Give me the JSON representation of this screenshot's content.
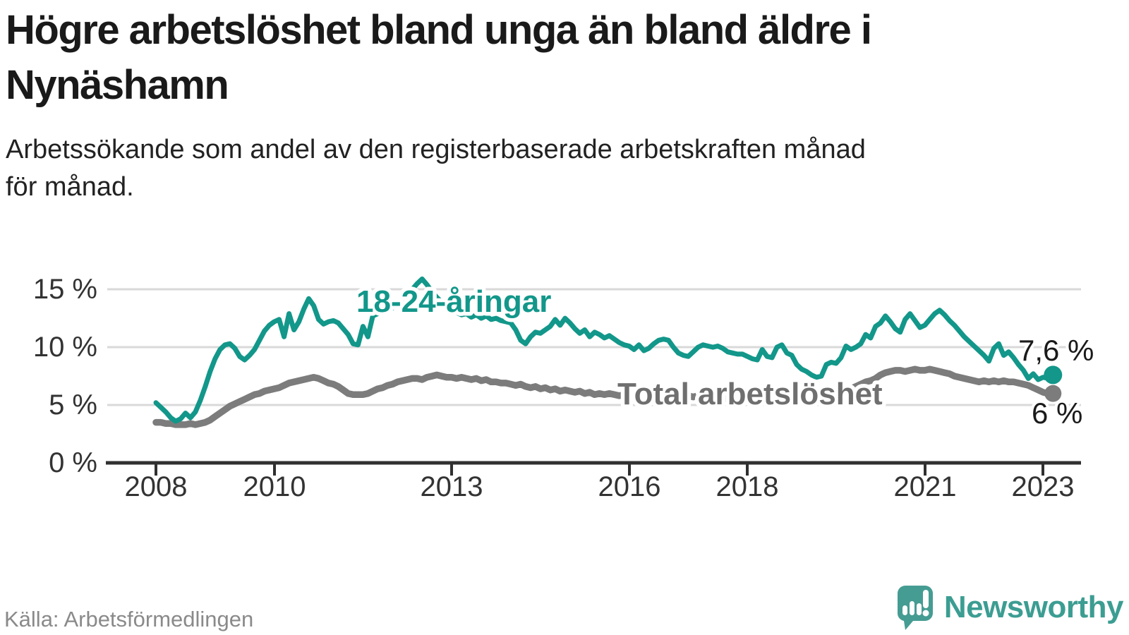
{
  "header": {
    "title": "Högre arbetslöshet bland unga än bland äldre i\nNynäshamn",
    "subtitle": "Arbetssökande som andel av den registerbaserade arbetskraften månad\nför månad."
  },
  "footer": {
    "source": "Källa: Arbetsförmedlingen",
    "brand": "Newsworthy",
    "logo_icon": "speech-bubble-bar-chart-icon"
  },
  "colors": {
    "youth_line": "#12978A",
    "total_line": "#7C7C7C",
    "total_label": "#6F6F6F",
    "axis": "#303030",
    "grid": "#D9D9D9",
    "end_label_text": "#1A1A1A",
    "brand_teal": "#3C9D92",
    "source_text": "#8A8A8A"
  },
  "chart_data": {
    "type": "line",
    "frequency": "monthly",
    "x_start": "2008-01",
    "x_end": "2023-03",
    "x_tick_labels": [
      "2008",
      "2010",
      "2013",
      "2016",
      "2018",
      "2021",
      "2023"
    ],
    "y_tick_labels": [
      "0 %",
      "5 %",
      "10 %",
      "15 %"
    ],
    "y_ticks": [
      0,
      5,
      10,
      15
    ],
    "ylim": [
      0,
      16.5
    ],
    "grid": "horizontal",
    "legend": "inline-labels",
    "series": [
      {
        "name": "18-24-åringar",
        "color": "#12978A",
        "label_color": "#12978A",
        "end_label": "7,6 %",
        "end_value": 7.6,
        "values": [
          5.2,
          4.8,
          4.4,
          3.9,
          3.6,
          3.8,
          4.3,
          3.9,
          4.4,
          5.4,
          6.6,
          7.9,
          9.0,
          9.8,
          10.2,
          10.3,
          9.9,
          9.2,
          8.9,
          9.3,
          9.8,
          10.6,
          11.4,
          11.9,
          12.2,
          12.4,
          10.9,
          12.9,
          11.5,
          12.2,
          13.3,
          14.2,
          13.6,
          12.4,
          12.0,
          12.2,
          12.3,
          12.1,
          11.6,
          11.1,
          10.3,
          10.2,
          11.8,
          10.9,
          12.7,
          12.9,
          13.3,
          13.6,
          13.4,
          13.7,
          14.1,
          14.5,
          15.0,
          15.5,
          15.9,
          15.4,
          14.8,
          14.3,
          13.9,
          13.6,
          13.3,
          13.0,
          12.8,
          12.9,
          12.6,
          12.8,
          12.5,
          12.7,
          12.4,
          12.5,
          12.3,
          12.2,
          12.1,
          11.5,
          10.6,
          10.3,
          10.9,
          11.3,
          11.2,
          11.5,
          11.8,
          12.4,
          11.9,
          12.5,
          12.1,
          11.6,
          11.2,
          11.5,
          10.9,
          11.3,
          11.1,
          10.8,
          11.0,
          10.7,
          10.4,
          10.2,
          10.1,
          9.8,
          10.2,
          9.7,
          9.9,
          10.3,
          10.6,
          10.7,
          10.6,
          10.0,
          9.5,
          9.3,
          9.2,
          9.6,
          10.0,
          10.2,
          10.1,
          10.0,
          10.1,
          9.9,
          9.6,
          9.5,
          9.4,
          9.4,
          9.2,
          9.0,
          8.9,
          9.8,
          9.2,
          9.1,
          10.0,
          10.2,
          9.5,
          9.3,
          8.5,
          8.1,
          7.9,
          7.6,
          7.4,
          7.5,
          8.5,
          8.7,
          8.6,
          9.1,
          10.1,
          9.8,
          10.0,
          10.3,
          11.1,
          10.8,
          11.8,
          12.1,
          12.7,
          12.2,
          11.6,
          11.3,
          12.4,
          12.9,
          12.3,
          11.7,
          11.9,
          12.4,
          12.9,
          13.2,
          12.8,
          12.3,
          11.9,
          11.4,
          10.9,
          10.5,
          10.1,
          9.7,
          9.3,
          8.8,
          9.9,
          10.3,
          9.3,
          9.6,
          9.1,
          8.5,
          8.0,
          7.3,
          7.7,
          7.2,
          7.4,
          7.3,
          7.6
        ]
      },
      {
        "name": "Total arbetslöshet",
        "color": "#7C7C7C",
        "label_color": "#6F6F6F",
        "end_label": "6 %",
        "end_value": 6.0,
        "values": [
          3.5,
          3.5,
          3.4,
          3.4,
          3.3,
          3.3,
          3.3,
          3.4,
          3.3,
          3.4,
          3.5,
          3.7,
          4.0,
          4.3,
          4.6,
          4.9,
          5.1,
          5.3,
          5.5,
          5.7,
          5.9,
          6.0,
          6.2,
          6.3,
          6.4,
          6.5,
          6.7,
          6.9,
          7.0,
          7.1,
          7.2,
          7.3,
          7.4,
          7.3,
          7.1,
          6.9,
          6.8,
          6.6,
          6.3,
          6.0,
          5.9,
          5.9,
          5.9,
          6.0,
          6.2,
          6.4,
          6.5,
          6.7,
          6.8,
          7.0,
          7.1,
          7.2,
          7.3,
          7.3,
          7.2,
          7.4,
          7.5,
          7.6,
          7.5,
          7.4,
          7.4,
          7.3,
          7.4,
          7.3,
          7.2,
          7.3,
          7.1,
          7.2,
          7.0,
          7.0,
          6.9,
          6.9,
          6.8,
          6.7,
          6.8,
          6.6,
          6.5,
          6.6,
          6.4,
          6.5,
          6.3,
          6.4,
          6.2,
          6.3,
          6.2,
          6.1,
          6.2,
          6.0,
          6.1,
          5.9,
          6.0,
          5.9,
          6.0,
          5.9,
          5.8,
          5.9,
          6.0,
          5.9,
          5.8,
          5.9,
          5.7,
          5.8,
          5.9,
          6.0,
          5.9,
          5.8,
          5.7,
          5.8,
          5.8,
          5.7,
          5.8,
          5.6,
          5.7,
          5.6,
          5.7,
          5.6,
          5.5,
          5.6,
          5.5,
          5.6,
          5.5,
          5.6,
          5.5,
          5.4,
          5.5,
          5.4,
          5.3,
          5.4,
          5.3,
          5.4,
          5.3,
          5.4,
          5.4,
          5.4,
          5.5,
          5.5,
          5.6,
          5.7,
          5.8,
          6.0,
          6.2,
          6.4,
          6.6,
          6.8,
          7.0,
          7.1,
          7.3,
          7.6,
          7.8,
          7.9,
          8.0,
          8.0,
          7.9,
          8.0,
          8.1,
          8.0,
          8.0,
          8.1,
          8.0,
          7.9,
          7.8,
          7.7,
          7.5,
          7.4,
          7.3,
          7.2,
          7.1,
          7.0,
          7.1,
          7.0,
          7.1,
          7.0,
          7.1,
          7.0,
          7.0,
          6.9,
          6.8,
          6.7,
          6.5,
          6.3,
          6.1,
          6.0,
          6.0
        ]
      }
    ]
  }
}
